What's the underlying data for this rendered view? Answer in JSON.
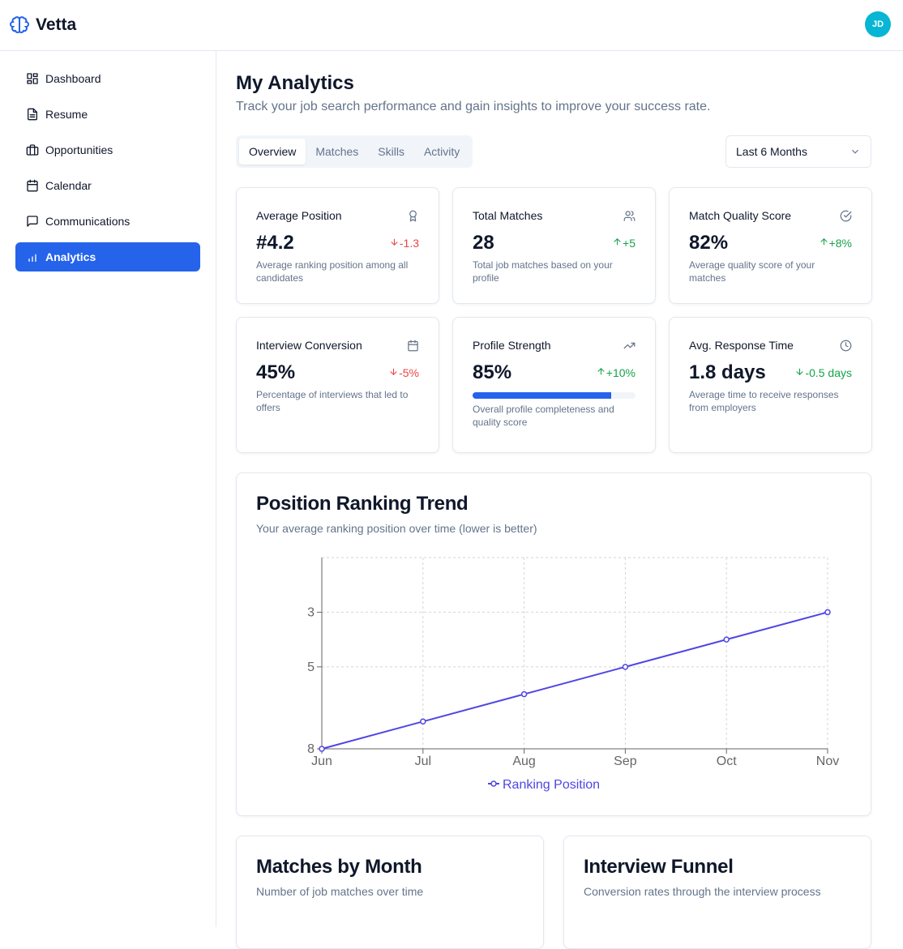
{
  "app": {
    "name": "Vetta",
    "avatar_initials": "JD",
    "accent": "#2563eb"
  },
  "sidebar": {
    "items": [
      {
        "label": "Dashboard",
        "icon": "layout-grid-icon"
      },
      {
        "label": "Resume",
        "icon": "file-text-icon"
      },
      {
        "label": "Opportunities",
        "icon": "briefcase-icon"
      },
      {
        "label": "Calendar",
        "icon": "calendar-icon"
      },
      {
        "label": "Communications",
        "icon": "message-square-icon"
      },
      {
        "label": "Analytics",
        "icon": "bar-chart-icon",
        "active": true
      }
    ]
  },
  "page": {
    "title": "My Analytics",
    "subtitle": "Track your job search performance and gain insights to improve your success rate."
  },
  "tabs": [
    "Overview",
    "Matches",
    "Skills",
    "Activity"
  ],
  "period": {
    "selected": "Last 6 Months"
  },
  "stats": [
    {
      "title": "Average Position",
      "icon": "award-icon",
      "value": "#4.2",
      "delta": "-1.3",
      "direction": "down",
      "desc": "Average ranking position among all candidates"
    },
    {
      "title": "Total Matches",
      "icon": "users-icon",
      "value": "28",
      "delta": "+5",
      "direction": "up",
      "desc": "Total job matches based on your profile"
    },
    {
      "title": "Match Quality Score",
      "icon": "check-circle-icon",
      "value": "82%",
      "delta": "+8%",
      "direction": "up",
      "desc": "Average quality score of your matches"
    },
    {
      "title": "Interview Conversion",
      "icon": "calendar-icon",
      "value": "45%",
      "delta": "-5%",
      "direction": "down",
      "desc": "Percentage of interviews that led to offers"
    },
    {
      "title": "Profile Strength",
      "icon": "trending-up-icon",
      "value": "85%",
      "delta": "+10%",
      "direction": "up",
      "desc": "Overall profile completeness and quality score",
      "progress": 85
    },
    {
      "title": "Avg. Response Time",
      "icon": "clock-icon",
      "value": "1.8 days",
      "delta": "-0.5 days",
      "direction": "down-good",
      "desc": "Average time to receive responses from employers"
    }
  ],
  "chart_data": {
    "type": "line",
    "title": "Position Ranking Trend",
    "subtitle": "Your average ranking position over time (lower is better)",
    "categories": [
      "Jun",
      "Jul",
      "Aug",
      "Sep",
      "Oct",
      "Nov"
    ],
    "series": [
      {
        "name": "Ranking Position",
        "values": [
          8,
          7,
          6,
          5,
          4,
          3
        ],
        "color": "#4f46e5"
      }
    ],
    "yticks": [
      "3",
      "5",
      "8"
    ],
    "ylim": [
      1,
      8
    ],
    "y_reversed": true,
    "grid": true,
    "legend": "bottom"
  },
  "bottom_cards": [
    {
      "title": "Matches by Month",
      "subtitle": "Number of job matches over time"
    },
    {
      "title": "Interview Funnel",
      "subtitle": "Conversion rates through the interview process"
    }
  ]
}
